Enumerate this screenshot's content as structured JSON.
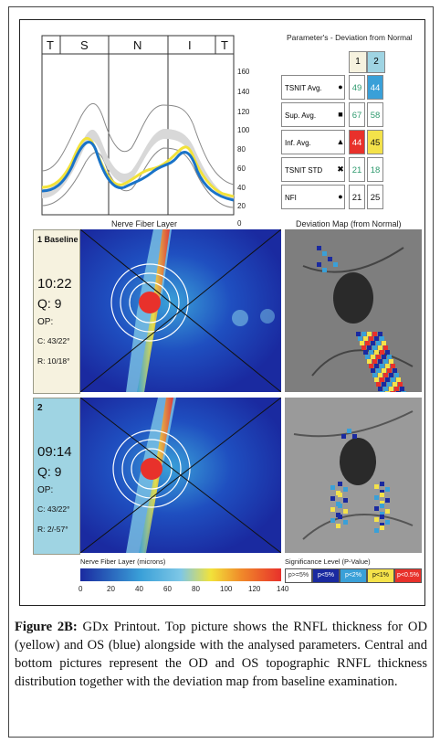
{
  "tsnit_chart": {
    "segment_labels": [
      "T",
      "S",
      "N",
      "I",
      "T"
    ],
    "y_ticks": [
      "160",
      "140",
      "120",
      "100",
      "80",
      "60",
      "40",
      "20",
      "0"
    ],
    "ylim": [
      0,
      160
    ]
  },
  "params": {
    "title": "Parameter's - Deviation from Normal",
    "col1": "1",
    "col2": "2",
    "rows": [
      {
        "label": "TSNIT Avg.",
        "symbol": "●",
        "v1": "49",
        "v2": "44",
        "c1": "#ffffff",
        "c2": "#3aa0d8",
        "t1": "#2e9a6e",
        "t2": "#ffffff"
      },
      {
        "label": "Sup. Avg.",
        "symbol": "■",
        "v1": "67",
        "v2": "58",
        "c1": "#ffffff",
        "c2": "#ffffff",
        "t1": "#2e9a6e",
        "t2": "#2e9a6e"
      },
      {
        "label": "Inf. Avg.",
        "symbol": "▲",
        "v1": "44",
        "v2": "45",
        "c1": "#e8312b",
        "c2": "#f4e24a",
        "t1": "#ffffff",
        "t2": "#111111"
      },
      {
        "label": "TSNIT STD",
        "symbol": "✖",
        "v1": "21",
        "v2": "18",
        "c1": "#ffffff",
        "c2": "#ffffff",
        "t1": "#2e9a6e",
        "t2": "#2e9a6e"
      },
      {
        "label": "NFI",
        "symbol": "●",
        "v1": "21",
        "v2": "25",
        "c1": "#ffffff",
        "c2": "#ffffff",
        "t1": "#111111",
        "t2": "#111111"
      }
    ]
  },
  "nfl_title": "Nerve Fiber Layer",
  "dev_title": "Deviation Map (from Normal)",
  "exam1": {
    "label": "1 Baseline",
    "time": "10:22",
    "q": "Q: 9",
    "op": "OP:",
    "c": "C: 43/22°",
    "r": "R: 10/18°"
  },
  "exam2": {
    "label": "2",
    "time": "09:14",
    "q": "Q: 9",
    "op": "OP:",
    "c": "C: 43/22°",
    "r": "R: 2/-57°"
  },
  "colorbar": {
    "label": "Nerve Fiber Layer (microns)",
    "ticks": [
      "0",
      "20",
      "40",
      "60",
      "80",
      "100",
      "120",
      "140"
    ]
  },
  "significance": {
    "label": "Significance Level (P-Value)",
    "items": [
      {
        "text": "p>=5%",
        "bg": "#ffffff",
        "fg": "#333333"
      },
      {
        "text": "p<5%",
        "bg": "#1a2aa0",
        "fg": "#ffffff"
      },
      {
        "text": "p<2%",
        "bg": "#3aa0d8",
        "fg": "#ffffff"
      },
      {
        "text": "p<1%",
        "bg": "#f4e24a",
        "fg": "#111111"
      },
      {
        "text": "p<0.5%",
        "bg": "#e8312b",
        "fg": "#ffffff"
      }
    ]
  },
  "caption": {
    "label": "Figure 2B:",
    "text": " GDx Printout. Top picture shows the RNFL thickness for OD (yellow) and OS (blue) alongside with the analysed parameters. Central and bottom pictures represent the OD and OS topographic RNFL thickness distribution together with the deviation map from baseline examination."
  }
}
